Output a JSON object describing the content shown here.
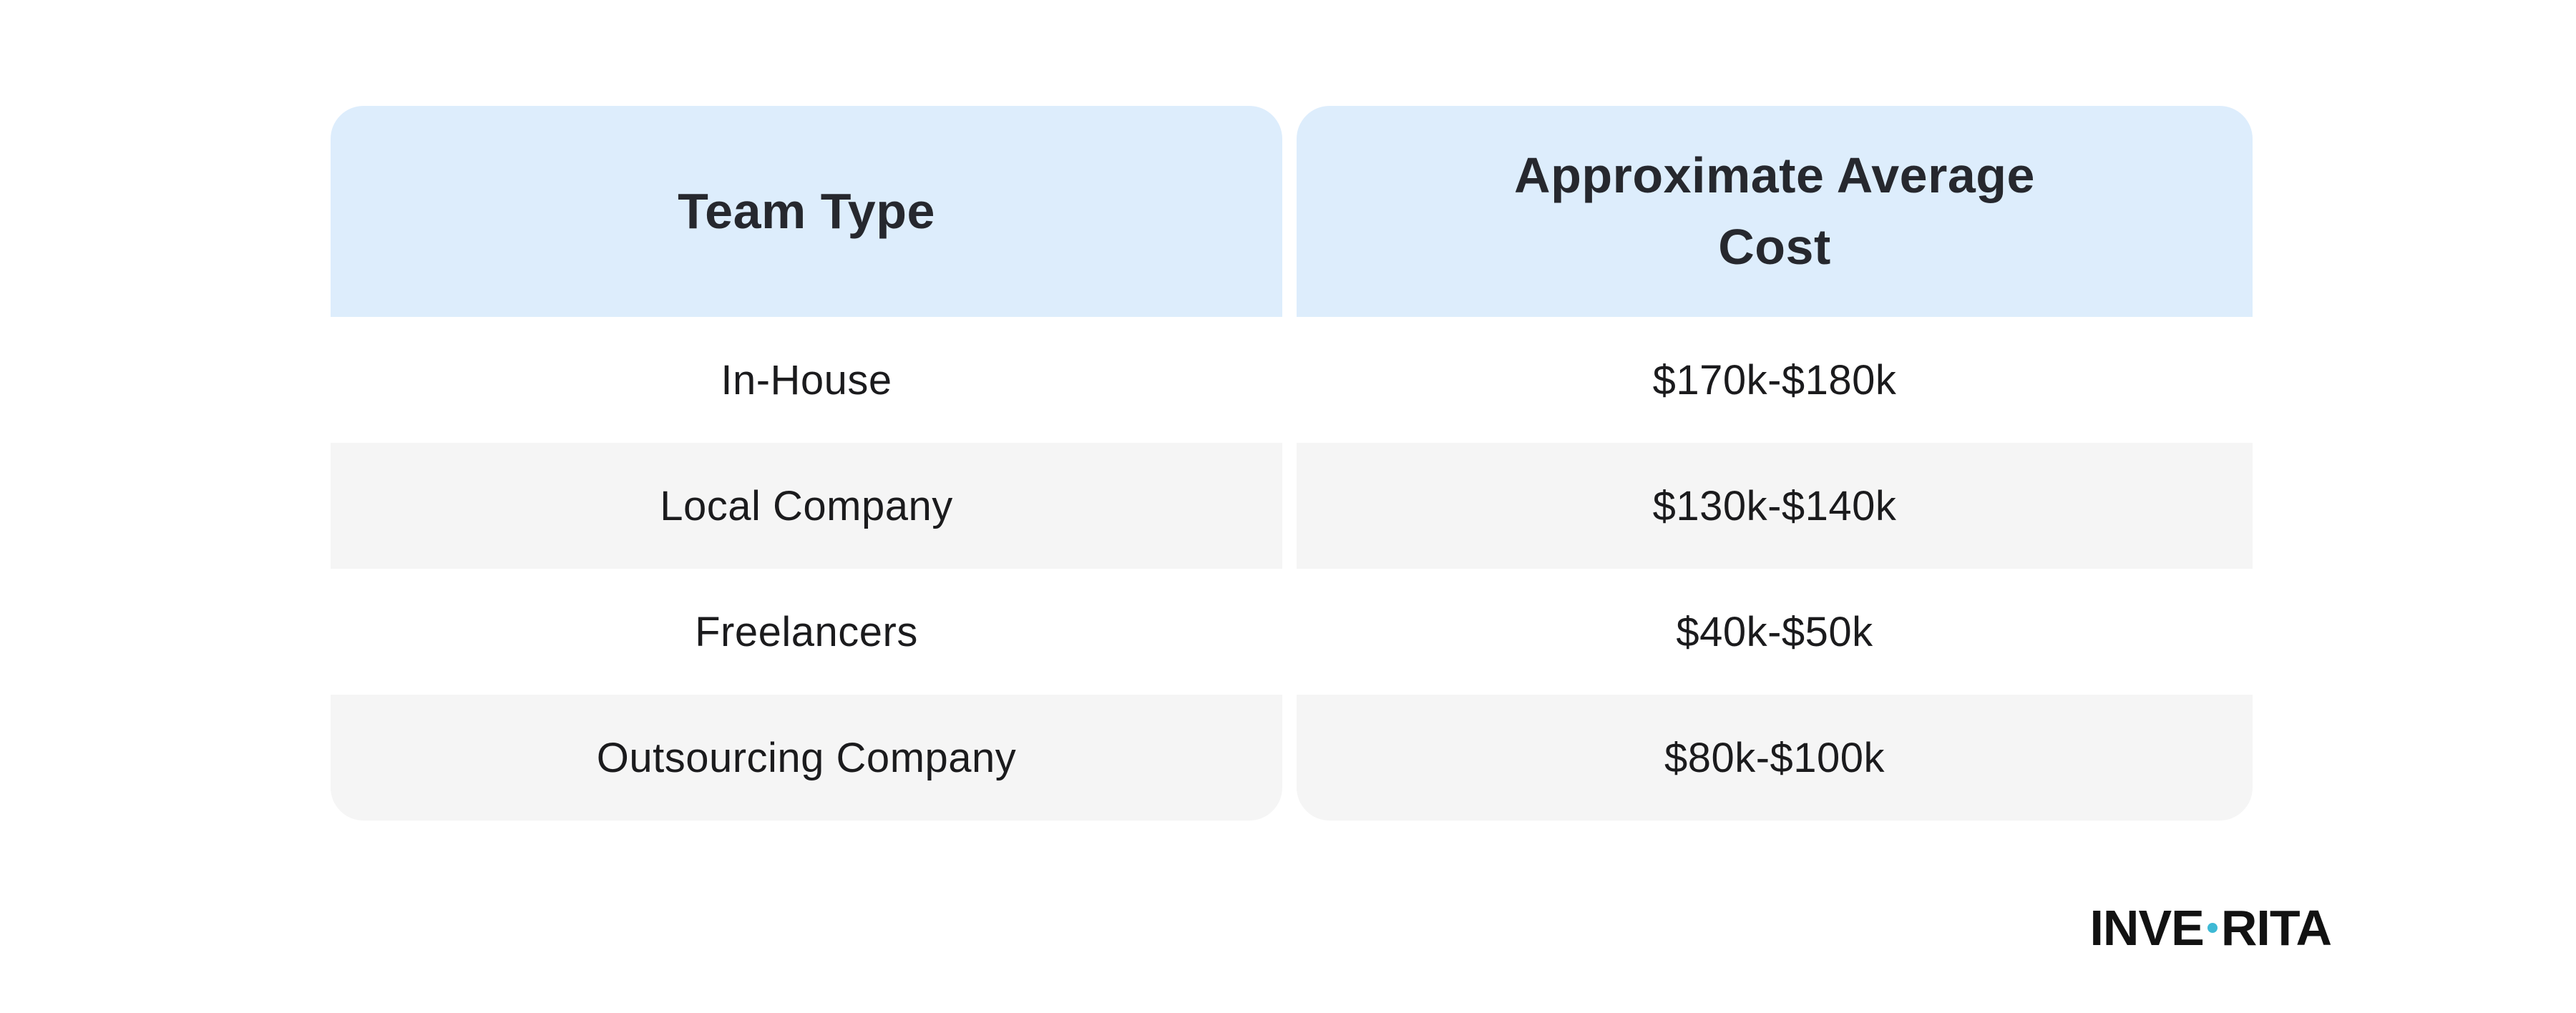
{
  "table": {
    "columns": [
      {
        "header": "Team Type"
      },
      {
        "header": "Approximate Average Cost"
      }
    ],
    "rows": [
      {
        "team_type": "In-House",
        "cost": "$170k-$180k"
      },
      {
        "team_type": "Local Company",
        "cost": "$130k-$140k"
      },
      {
        "team_type": "Freelancers",
        "cost": "$40k-$50k"
      },
      {
        "team_type": "Outsourcing Company",
        "cost": "$80k-$100k"
      }
    ],
    "colors": {
      "header_bg": "#ddedfc",
      "row_bg": "#ffffff",
      "row_alt_bg": "#f5f5f5",
      "header_text": "#26282e",
      "cell_text": "#1b1b1d"
    }
  },
  "logo": {
    "text_left": "INVE",
    "text_right": "RITA",
    "dot_color": "#3eb9d5"
  },
  "chart_data": {
    "type": "table",
    "columns": [
      "Team Type",
      "Approximate Average Cost"
    ],
    "rows": [
      [
        "In-House",
        "$170k-$180k"
      ],
      [
        "Local Company",
        "$130k-$140k"
      ],
      [
        "Freelancers",
        "$40k-$50k"
      ],
      [
        "Outsourcing Company",
        "$80k-$100k"
      ]
    ],
    "title": "",
    "legend": false,
    "grid": false
  }
}
